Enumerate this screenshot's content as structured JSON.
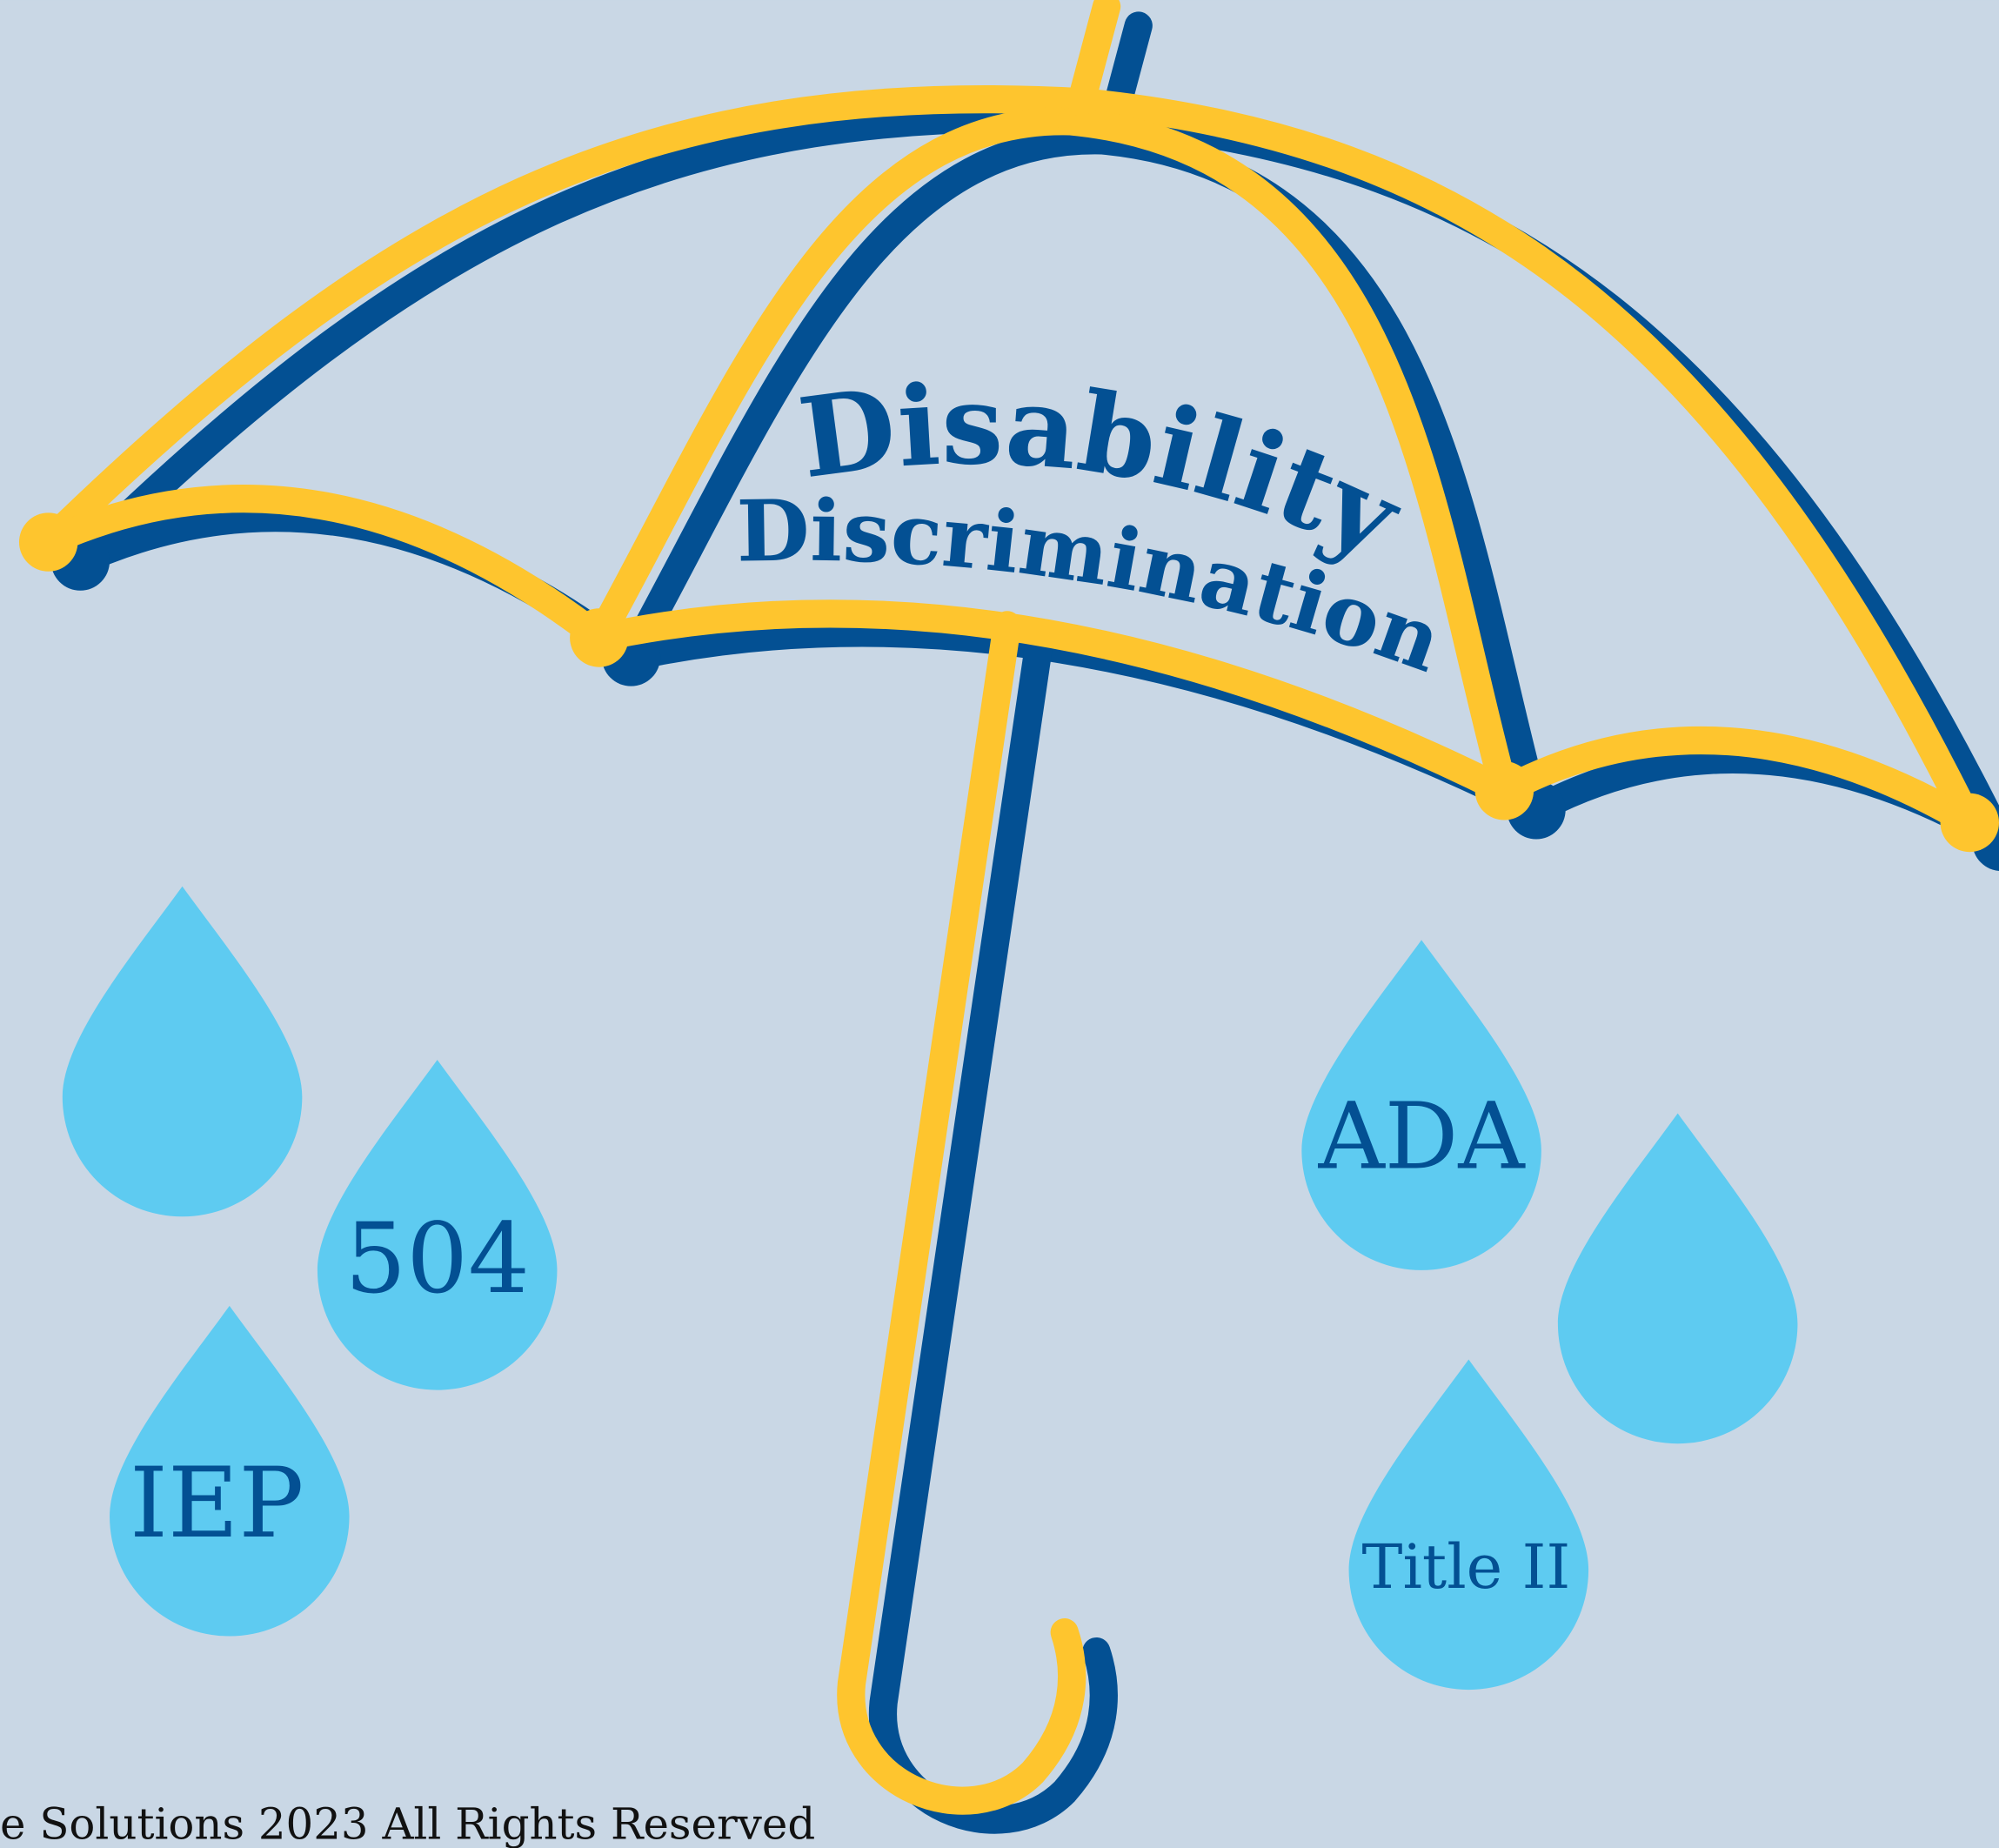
{
  "title": {
    "line1": "Disability",
    "line2": "Discrimination"
  },
  "drops": [
    {
      "label": "504"
    },
    {
      "label": "IEP"
    },
    {
      "label": "ADA"
    },
    {
      "label": "Title II"
    }
  ],
  "footer": "e Solutions 2023 All Rights Reserved"
}
